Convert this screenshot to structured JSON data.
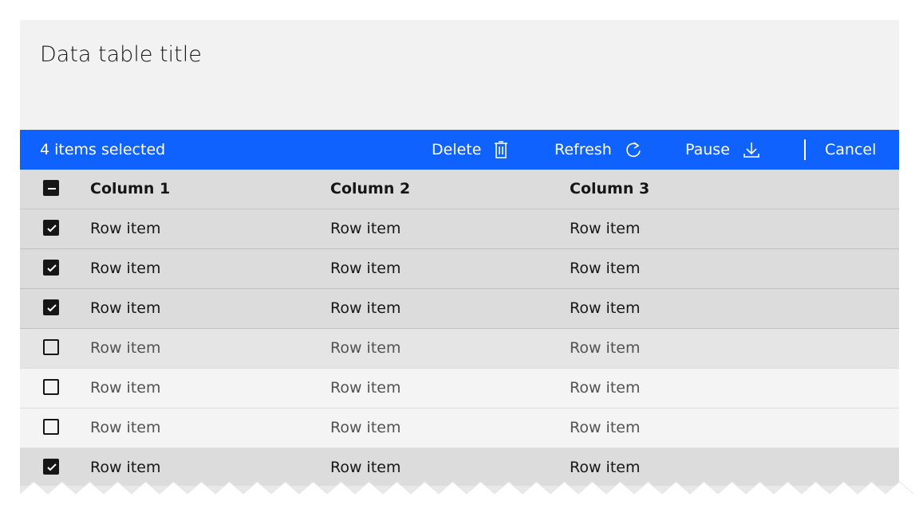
{
  "title": "Data table title",
  "batch": {
    "count_label": "4 items selected",
    "actions": [
      {
        "label": "Delete",
        "icon": "trash-icon"
      },
      {
        "label": "Refresh",
        "icon": "refresh-icon"
      },
      {
        "label": "Pause",
        "icon": "download-icon"
      }
    ],
    "cancel": "Cancel"
  },
  "columns": [
    "Column 1",
    "Column 2",
    "Column 3"
  ],
  "header_checkbox": "indeterminate",
  "rows": [
    {
      "cells": [
        "Row item",
        "Row item",
        "Row item"
      ],
      "selected": true
    },
    {
      "cells": [
        "Row item",
        "Row item",
        "Row item"
      ],
      "selected": true
    },
    {
      "cells": [
        "Row item",
        "Row item",
        "Row item"
      ],
      "selected": true
    },
    {
      "cells": [
        "Row item",
        "Row item",
        "Row item"
      ],
      "selected": false,
      "hover": true
    },
    {
      "cells": [
        "Row item",
        "Row item",
        "Row item"
      ],
      "selected": false
    },
    {
      "cells": [
        "Row item",
        "Row item",
        "Row item"
      ],
      "selected": false
    },
    {
      "cells": [
        "Row item",
        "Row item",
        "Row item"
      ],
      "selected": true
    }
  ],
  "colors": {
    "accent": "#0f62fe",
    "selected_row": "#dcdcdc",
    "row": "#f4f4f4",
    "hover_row": "#e5e5e5"
  }
}
